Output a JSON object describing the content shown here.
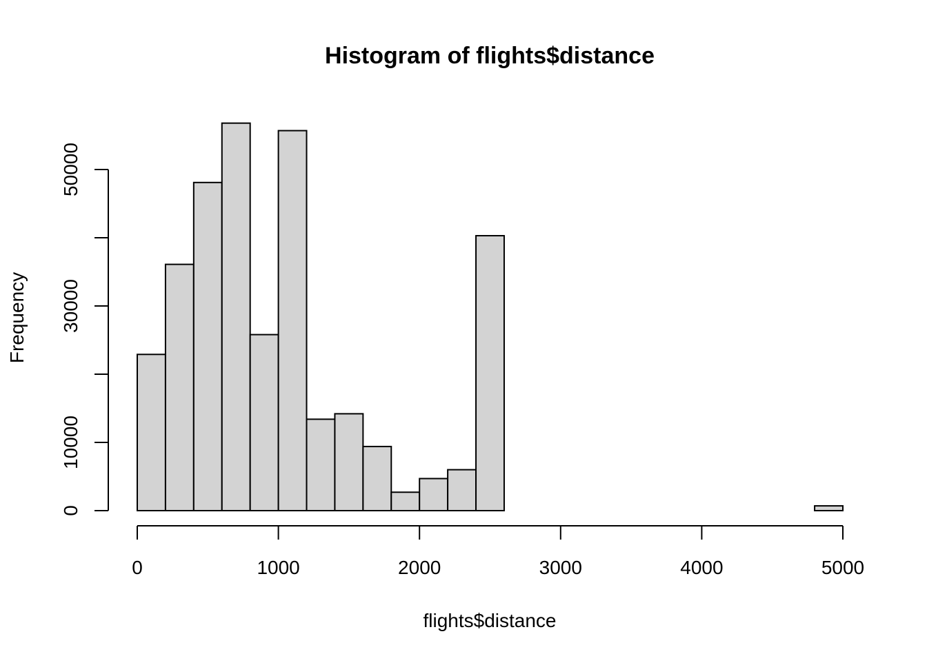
{
  "chart_data": {
    "type": "bar",
    "title": "Histogram of flights$distance",
    "xlabel": "flights$distance",
    "ylabel": "Frequency",
    "xlim": [
      0,
      5000
    ],
    "ylim": [
      0,
      57000
    ],
    "bin_width": 200,
    "bins": [
      {
        "start": 0,
        "end": 200,
        "count": 22900
      },
      {
        "start": 200,
        "end": 400,
        "count": 36100
      },
      {
        "start": 400,
        "end": 600,
        "count": 48100
      },
      {
        "start": 600,
        "end": 800,
        "count": 56800
      },
      {
        "start": 800,
        "end": 1000,
        "count": 25800
      },
      {
        "start": 1000,
        "end": 1200,
        "count": 55700
      },
      {
        "start": 1200,
        "end": 1400,
        "count": 13400
      },
      {
        "start": 1400,
        "end": 1600,
        "count": 14200
      },
      {
        "start": 1600,
        "end": 1800,
        "count": 9400
      },
      {
        "start": 1800,
        "end": 2000,
        "count": 2700
      },
      {
        "start": 2000,
        "end": 2200,
        "count": 4700
      },
      {
        "start": 2200,
        "end": 2400,
        "count": 6000
      },
      {
        "start": 2400,
        "end": 2600,
        "count": 40300
      },
      {
        "start": 2600,
        "end": 2800,
        "count": 0
      },
      {
        "start": 2800,
        "end": 3000,
        "count": 0
      },
      {
        "start": 3000,
        "end": 3200,
        "count": 0
      },
      {
        "start": 3200,
        "end": 3400,
        "count": 0
      },
      {
        "start": 3400,
        "end": 3600,
        "count": 0
      },
      {
        "start": 3600,
        "end": 3800,
        "count": 0
      },
      {
        "start": 3800,
        "end": 4000,
        "count": 0
      },
      {
        "start": 4000,
        "end": 4200,
        "count": 0
      },
      {
        "start": 4200,
        "end": 4400,
        "count": 0
      },
      {
        "start": 4400,
        "end": 4600,
        "count": 0
      },
      {
        "start": 4600,
        "end": 4800,
        "count": 0
      },
      {
        "start": 4800,
        "end": 5000,
        "count": 700
      }
    ],
    "x_ticks": [
      0,
      1000,
      2000,
      3000,
      4000,
      5000
    ],
    "x_tick_labels": [
      "0",
      "1000",
      "2000",
      "3000",
      "4000",
      "5000"
    ],
    "y_ticks": [
      0,
      10000,
      20000,
      30000,
      40000,
      50000
    ],
    "y_tick_labels": [
      "0",
      "10000",
      "",
      "30000",
      "",
      "50000"
    ],
    "bar_fill": "#d3d3d3",
    "bar_stroke": "#000000",
    "grid": false,
    "legend": "none"
  }
}
